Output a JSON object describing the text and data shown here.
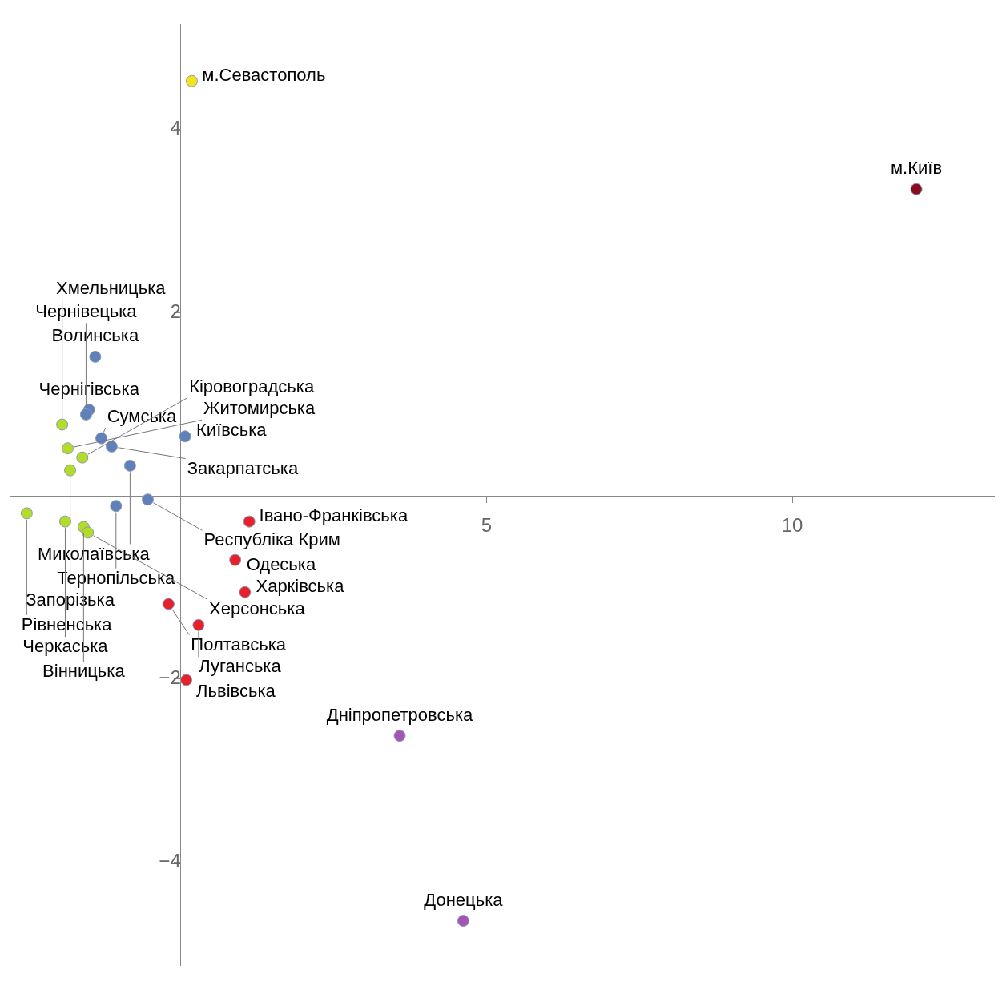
{
  "chart_data": {
    "type": "scatter",
    "x": [
      0.18,
      12.03,
      -1.4,
      -1.5,
      -1.55,
      -1.3,
      -1.13,
      0.07,
      -0.83,
      -0.54,
      -1.06,
      -1.94,
      -1.85,
      -1.61,
      -1.81,
      -2.52,
      -1.89,
      -1.59,
      -1.52,
      1.12,
      0.89,
      1.05,
      -0.2,
      0.29,
      0.09,
      3.58,
      4.62
    ],
    "values": [
      4.53,
      3.35,
      1.52,
      0.94,
      0.89,
      0.63,
      0.54,
      0.65,
      0.33,
      -0.04,
      -0.11,
      0.78,
      0.52,
      0.42,
      0.28,
      -0.19,
      -0.28,
      -0.34,
      -0.4,
      -0.28,
      -0.7,
      -1.05,
      -1.18,
      -1.41,
      -2.01,
      -2.62,
      -4.64
    ],
    "colors": [
      "#f2e41c",
      "#8b0c1c",
      "#5f80b8",
      "#5f80b8",
      "#5f80b8",
      "#5f80b8",
      "#5f80b8",
      "#5f80b8",
      "#5f80b8",
      "#5f80b8",
      "#5f80b8",
      "#b3dc28",
      "#b3dc28",
      "#b3dc28",
      "#b3dc28",
      "#b3dc28",
      "#b3dc28",
      "#b3dc28",
      "#b3dc28",
      "#e8202c",
      "#e8202c",
      "#e8202c",
      "#e8202c",
      "#e8202c",
      "#e8202c",
      "#a455b4",
      "#a455b4"
    ],
    "marker": "circle",
    "xlim": [
      -2.8,
      13.3
    ],
    "ylim": [
      -5.13,
      5.15
    ],
    "xticks": [
      5,
      10
    ],
    "yticks": [
      -4,
      -2,
      2,
      4
    ],
    "annotations": [
      {
        "text": "м.Севастополь",
        "x": 0.18,
        "y": 4.53
      },
      {
        "text": "м.Київ",
        "x": 12.03,
        "y": 3.35
      },
      {
        "text": "Волинська",
        "x": -1.4,
        "y": 1.52
      },
      {
        "text": "Чернігівська",
        "x": -1.5,
        "y": 0.94
      },
      {
        "text": "Чернівецька",
        "x": -1.55,
        "y": 0.89
      },
      {
        "text": "Сумська",
        "x": -1.3,
        "y": 0.63
      },
      {
        "text": "Закарпатська",
        "x": -1.13,
        "y": 0.54
      },
      {
        "text": "Київська",
        "x": 0.07,
        "y": 0.65
      },
      {
        "text": "Миколаївська",
        "x": -0.83,
        "y": 0.33
      },
      {
        "text": "Республіка Крим",
        "x": -0.54,
        "y": -0.04
      },
      {
        "text": "Тернопільська",
        "x": -1.06,
        "y": -0.11
      },
      {
        "text": "Хмельницька",
        "x": -1.94,
        "y": 0.78
      },
      {
        "text": "Житомирська",
        "x": -1.85,
        "y": 0.52
      },
      {
        "text": "Кіровоградська",
        "x": -1.61,
        "y": 0.42
      },
      {
        "text": "Запорізька",
        "x": -1.81,
        "y": 0.28
      },
      {
        "text": "Рівненська",
        "x": -2.52,
        "y": -0.19
      },
      {
        "text": "Черкаська",
        "x": -1.89,
        "y": -0.28
      },
      {
        "text": "Вінницька",
        "x": -1.59,
        "y": -0.34
      },
      {
        "text": "Херсонська",
        "x": -1.52,
        "y": -0.4
      },
      {
        "text": "Івано-Франківська",
        "x": 1.12,
        "y": -0.28
      },
      {
        "text": "Одеська",
        "x": 0.89,
        "y": -0.7
      },
      {
        "text": "Харківська",
        "x": 1.05,
        "y": -1.05
      },
      {
        "text": "Полтавська",
        "x": -0.2,
        "y": -1.18
      },
      {
        "text": "Луганська",
        "x": 0.29,
        "y": -1.41
      },
      {
        "text": "Львівська",
        "x": 0.09,
        "y": -2.01
      },
      {
        "text": "Дніпропетровська",
        "x": 3.58,
        "y": -2.62
      },
      {
        "text": "Донецька",
        "x": 4.62,
        "y": -4.64
      }
    ]
  }
}
